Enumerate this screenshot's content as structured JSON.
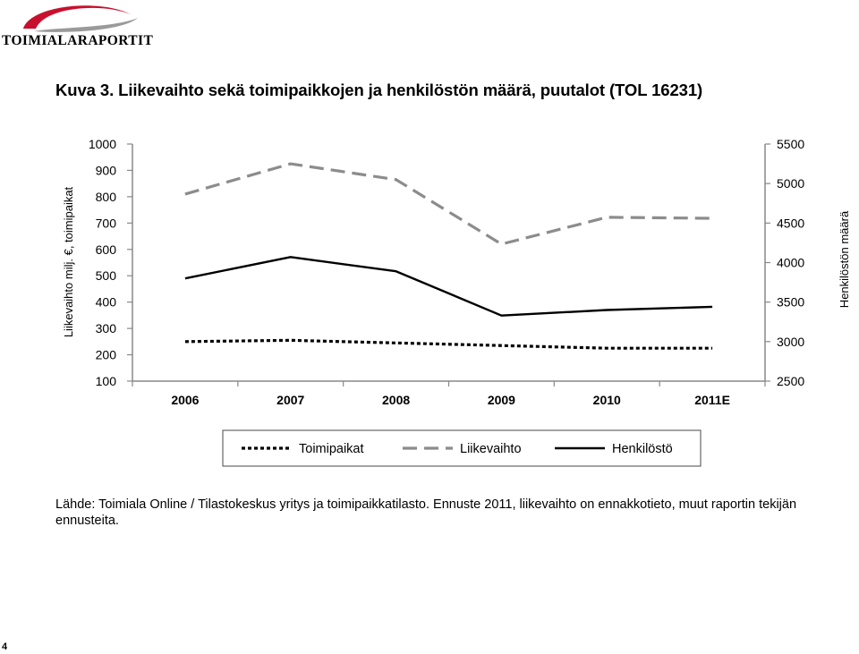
{
  "logo": {
    "text": "TOIMIALARAPORTIT",
    "colors": {
      "swoosh_red": "#c8102e",
      "swoosh_grey": "#9a9a9a"
    }
  },
  "title": "Kuva 3. Liikevaihto sekä toimipaikkojen ja henkilöstön määrä, puutalot (TOL 16231)",
  "source": "Lähde: Toimiala Online / Tilastokeskus yritys ja toimipaikkatilasto. Ennuste 2011, liikevaihto on ennakkotieto, muut raportin tekijän ennusteita.",
  "page_number": "4",
  "chart_data": {
    "type": "line",
    "categories": [
      "2006",
      "2007",
      "2008",
      "2009",
      "2010",
      "2011E"
    ],
    "ylabel": "Liikevaihto milj. €, toimipaikat",
    "ylabel_right": "Henkilöstön määrä",
    "ylim": [
      100,
      1000
    ],
    "yticks": [
      "1000",
      "900",
      "800",
      "700",
      "600",
      "500",
      "400",
      "300",
      "200",
      "100"
    ],
    "ylim_right": [
      2500,
      5500
    ],
    "yticks_right": [
      "5500",
      "5000",
      "4500",
      "4000",
      "3500",
      "3000",
      "2500"
    ],
    "grid": false,
    "legend_position": "bottom",
    "series": [
      {
        "name": "Toimipaikat",
        "axis": "left",
        "style": "dotted",
        "color": "#000000",
        "values": [
          250,
          255,
          245,
          235,
          225,
          225
        ]
      },
      {
        "name": "Liikevaihto",
        "axis": "left",
        "style": "dashed",
        "color": "#8c8c8c",
        "values": [
          810,
          925,
          865,
          620,
          722,
          718
        ]
      },
      {
        "name": "Henkilöstö",
        "axis": "right",
        "style": "solid",
        "color": "#000000",
        "values": [
          3800,
          4070,
          3890,
          3330,
          3400,
          3440
        ]
      }
    ]
  }
}
